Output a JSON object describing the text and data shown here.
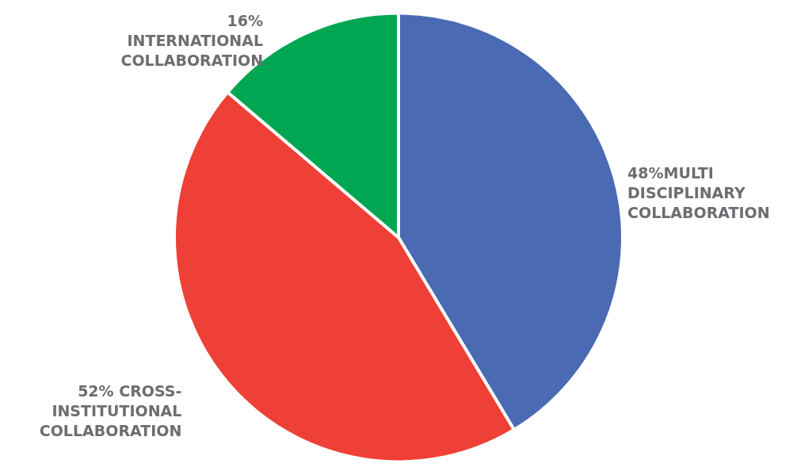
{
  "chart_data": {
    "type": "pie",
    "categories": [
      "48%MULTI\nDISCIPLINARY\nCOLLABORATION",
      "52% CROSS-\nINSTITUTIONAL\nCOLLABORATION",
      "16%\nINTERNATIONAL\nCOLLABORATION"
    ],
    "values": [
      48,
      52,
      16
    ],
    "colors": [
      "#4a6bb3",
      "#ee4036",
      "#00a651"
    ]
  }
}
